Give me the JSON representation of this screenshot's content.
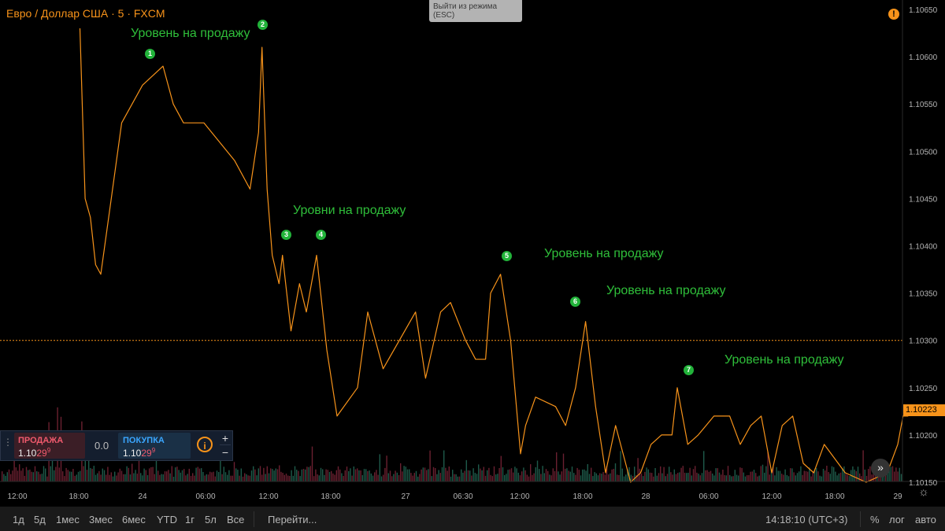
{
  "header": {
    "symbol": "Евро / Доллар США · 5 · FXCM",
    "exit_tooltip_line1": "Выйти из режима",
    "exit_tooltip_line2": "(ESC)",
    "alert_icon": "warning-icon"
  },
  "annotations": [
    {
      "label": "Уровень на продажу",
      "marker": "1",
      "marker_x": "24 15:00"
    },
    {
      "label": "",
      "marker": "2",
      "marker_x": "24 11:40"
    },
    {
      "label": "Уровни на продажу",
      "marker": "3",
      "marker_x": "24 13:40"
    },
    {
      "label": "",
      "marker": "4",
      "marker_x": "24 17:00"
    },
    {
      "label": "Уровень на продажу",
      "marker": "5",
      "marker_x": "27 09:30"
    },
    {
      "label": "Уровень на продажу",
      "marker": "6",
      "marker_x": "27 18:00"
    },
    {
      "label": "Уровень на продажу",
      "marker": "7",
      "marker_x": "28 03:00"
    }
  ],
  "trade_panel": {
    "sell_label": "ПРОДАЖА",
    "sell_price_main": "1.10",
    "sell_price_pips": "29",
    "sell_price_sup": "9",
    "spread": "0.0",
    "buy_label": "ПОКУПКА",
    "buy_price_main": "1.10",
    "buy_price_pips": "29",
    "buy_price_sup": "9",
    "info_icon": "info-icon",
    "plus": "+",
    "minus": "−"
  },
  "last_price": "1.10223",
  "scroll_icon": "double-chevron-right-icon",
  "bottom_bar": {
    "ranges": [
      "1д",
      "5д",
      "1мес",
      "3мес",
      "6мес",
      "YTD",
      "1г",
      "5л",
      "Все"
    ],
    "goto": "Перейти...",
    "clock": "14:18:10 (UTC+3)",
    "percent": "%",
    "log": "лог",
    "auto": "авто",
    "settings_icon": "gear-icon"
  },
  "colors": {
    "line": "#f7931a",
    "volume_up": "#1e5a4a",
    "volume_down": "#6a2030",
    "label_green": "#2fbf3a",
    "price_line": "#f7931a"
  },
  "chart_data": {
    "type": "line",
    "title": "Евро / Доллар США · 5 · FXCM",
    "y_axis": {
      "min": 1.1015,
      "max": 1.1065,
      "ticks": [
        "1.10650",
        "1.10600",
        "1.10550",
        "1.10500",
        "1.10450",
        "1.10400",
        "1.10350",
        "1.10300",
        "1.10250",
        "1.10200",
        "1.10150"
      ]
    },
    "x_axis": {
      "ticks": [
        "12:00",
        "18:00",
        "24",
        "06:00",
        "12:00",
        "18:00",
        "27",
        "06:30",
        "12:00",
        "18:00",
        "28",
        "06:00",
        "12:00",
        "18:00",
        "29"
      ]
    },
    "horizontal_line": 1.103,
    "series": [
      {
        "x": [
          "23 18:00",
          "23 18:30",
          "23 19:00",
          "23 19:30",
          "23 20:00",
          "23 21:00",
          "23 22:00",
          "24 00:00",
          "24 02:00",
          "24 03:00",
          "24 04:00",
          "24 06:00",
          "24 07:30",
          "24 09:00",
          "24 10:30",
          "24 11:20",
          "24 11:40",
          "24 12:10",
          "24 12:40",
          "24 13:20",
          "24 13:40",
          "24 14:30",
          "24 15:20",
          "24 16:00",
          "24 17:00",
          "24 18:00",
          "24 19:00",
          "24 21:00",
          "24 22:00",
          "24 23:30",
          "27 01:00",
          "27 02:00",
          "27 03:30",
          "27 04:30",
          "27 06:00",
          "27 07:00",
          "27 08:00",
          "27 08:30",
          "27 09:30",
          "27 10:30",
          "27 11:30",
          "27 12:00",
          "27 13:00",
          "27 15:00",
          "27 16:00",
          "27 17:00",
          "27 18:00",
          "27 19:00",
          "27 20:00",
          "27 21:00",
          "27 22:30",
          "27 23:30",
          "28 00:30",
          "28 01:30",
          "28 02:30",
          "28 03:00",
          "28 04:00",
          "28 05:00",
          "28 06:30",
          "28 08:00",
          "28 09:00",
          "28 10:00",
          "28 11:00",
          "28 12:00",
          "28 13:00",
          "28 14:00",
          "28 15:00",
          "28 16:00",
          "28 17:00",
          "28 19:00",
          "28 21:00",
          "28 23:00",
          "29 00:00",
          "29 00:30",
          "29 01:00"
        ],
        "y": [
          1.1063,
          1.1045,
          1.1043,
          1.1038,
          1.1037,
          1.1045,
          1.1053,
          1.1057,
          1.1059,
          1.1055,
          1.1053,
          1.1053,
          1.1051,
          1.1049,
          1.1046,
          1.1052,
          1.1061,
          1.1046,
          1.1039,
          1.1036,
          1.1039,
          1.1031,
          1.1036,
          1.1033,
          1.1039,
          1.1029,
          1.1022,
          1.1025,
          1.1033,
          1.1027,
          1.1033,
          1.1026,
          1.1033,
          1.1034,
          1.103,
          1.1028,
          1.1028,
          1.1035,
          1.1037,
          1.103,
          1.1018,
          1.1021,
          1.1024,
          1.1023,
          1.1021,
          1.1025,
          1.1032,
          1.1023,
          1.1016,
          1.1021,
          1.1015,
          1.1016,
          1.1019,
          1.102,
          1.102,
          1.1025,
          1.1019,
          1.102,
          1.1022,
          1.1022,
          1.1019,
          1.1021,
          1.1022,
          1.1016,
          1.1021,
          1.1022,
          1.1017,
          1.1016,
          1.1019,
          1.1016,
          1.1015,
          1.1016,
          1.1019,
          1.1022,
          1.1022
        ]
      }
    ]
  }
}
